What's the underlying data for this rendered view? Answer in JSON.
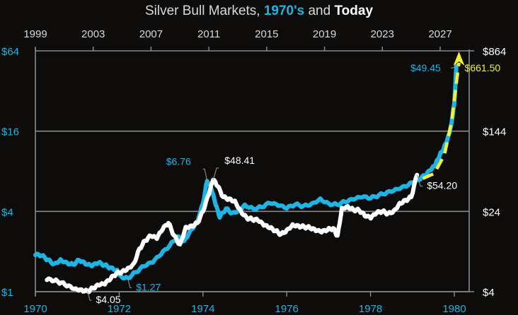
{
  "chart_data": {
    "type": "line",
    "title": {
      "prefix": "Silver Bull Markets, ",
      "highlight_1970s": "1970's",
      "middle": " and ",
      "highlight_today": "Today"
    },
    "colors": {
      "series_1970s": "#1fb4e3",
      "series_today": "#ffffff",
      "projection": "#f2ef3a",
      "axis": "#8a8a8a",
      "background": "#0d0c0b"
    },
    "x_bottom": {
      "label": "",
      "ticks": [
        "1970",
        "1972",
        "1974",
        "1976",
        "1978",
        "1980"
      ],
      "range": [
        1970,
        1980.4
      ]
    },
    "x_top": {
      "label": "",
      "ticks": [
        "1999",
        "2003",
        "2007",
        "2011",
        "2015",
        "2019",
        "2023",
        "2027"
      ],
      "range": [
        1999,
        2029.3
      ]
    },
    "y_left": {
      "scale": "log",
      "ticks": [
        "$1",
        "$4",
        "$16",
        "$64"
      ],
      "values": [
        1,
        4,
        16,
        64
      ],
      "range": [
        1,
        64
      ]
    },
    "y_right": {
      "scale": "log",
      "ticks": [
        "$4",
        "$24",
        "$144",
        "$864"
      ],
      "values": [
        4,
        24,
        144,
        864
      ],
      "range": [
        4,
        864
      ]
    },
    "grid": true,
    "series": [
      {
        "name": "1970's",
        "axis": "bottom-left",
        "x": [
          1970.0,
          1970.15,
          1970.3,
          1970.45,
          1970.6,
          1970.75,
          1970.9,
          1971.05,
          1971.2,
          1971.35,
          1971.5,
          1971.65,
          1971.8,
          1971.95,
          1972.05,
          1972.2,
          1972.4,
          1972.6,
          1972.8,
          1973.0,
          1973.2,
          1973.4,
          1973.55,
          1973.7,
          1973.85,
          1974.0,
          1974.1,
          1974.2,
          1974.3,
          1974.4,
          1974.55,
          1974.7,
          1974.85,
          1975.0,
          1975.2,
          1975.4,
          1975.6,
          1975.8,
          1976.0,
          1976.2,
          1976.4,
          1976.6,
          1976.8,
          1977.0,
          1977.2,
          1977.4,
          1977.6,
          1977.8,
          1978.0,
          1978.2,
          1978.4,
          1978.6,
          1978.8,
          1979.0,
          1979.15,
          1979.3,
          1979.45,
          1979.55,
          1979.65,
          1979.75,
          1979.85,
          1979.92,
          1980.0,
          1980.05
        ],
        "y": [
          1.88,
          1.86,
          1.74,
          1.62,
          1.75,
          1.66,
          1.6,
          1.72,
          1.6,
          1.55,
          1.64,
          1.58,
          1.52,
          1.46,
          1.3,
          1.27,
          1.4,
          1.55,
          1.65,
          1.9,
          2.2,
          2.6,
          2.4,
          2.9,
          3.3,
          4.6,
          6.76,
          5.9,
          4.5,
          3.6,
          4.2,
          3.9,
          4.1,
          4.5,
          4.2,
          4.3,
          4.6,
          4.4,
          4.2,
          4.5,
          4.4,
          4.6,
          5.0,
          4.6,
          4.5,
          4.7,
          4.9,
          5.1,
          5.0,
          5.3,
          5.6,
          5.9,
          6.2,
          6.6,
          6.9,
          7.4,
          8.2,
          8.9,
          10.5,
          12.0,
          14.5,
          17.5,
          26.0,
          49.45
        ]
      },
      {
        "name": "Today",
        "axis": "top-right",
        "x": [
          1999.8,
          2000.3,
          2000.8,
          2001.3,
          2001.8,
          2002.2,
          2002.6,
          2003.0,
          2003.4,
          2003.8,
          2004.2,
          2004.6,
          2005.0,
          2005.4,
          2005.8,
          2006.2,
          2006.6,
          2007.0,
          2007.4,
          2007.8,
          2008.2,
          2008.6,
          2009.0,
          2009.4,
          2009.8,
          2010.2,
          2010.6,
          2011.0,
          2011.3,
          2011.6,
          2012.0,
          2012.4,
          2012.8,
          2013.2,
          2013.6,
          2014.0,
          2014.4,
          2014.8,
          2015.2,
          2015.6,
          2016.0,
          2016.4,
          2016.8,
          2017.2,
          2017.6,
          2018.0,
          2018.4,
          2018.8,
          2019.2,
          2019.6,
          2019.9,
          2020.2,
          2020.6,
          2021.0,
          2021.4,
          2021.8,
          2022.2,
          2022.6,
          2023.0,
          2023.4,
          2023.8,
          2024.2,
          2024.6,
          2025.0,
          2025.4
        ],
        "y": [
          5.2,
          5.1,
          4.9,
          4.6,
          4.3,
          4.2,
          4.05,
          4.3,
          4.6,
          4.7,
          5.3,
          6.0,
          6.3,
          6.8,
          7.5,
          10.5,
          12.5,
          13.8,
          13.0,
          16.0,
          18.5,
          14.0,
          11.5,
          17.0,
          17.5,
          18.5,
          24.0,
          35.0,
          48.41,
          42.0,
          33.0,
          32.0,
          30.5,
          24.5,
          21.0,
          20.0,
          19.5,
          17.5,
          16.5,
          15.5,
          14.5,
          16.0,
          18.0,
          17.5,
          17.0,
          16.5,
          15.5,
          15.0,
          15.8,
          16.5,
          14.0,
          26.0,
          27.0,
          25.0,
          24.5,
          21.5,
          20.5,
          23.0,
          24.0,
          23.0,
          24.5,
          29.0,
          31.0,
          33.0,
          54.2
        ]
      },
      {
        "name": "Projection",
        "axis": "top-right",
        "style": "dashed-arrow",
        "x": [
          2025.8,
          2026.6,
          2027.3,
          2027.8,
          2028.1,
          2028.3
        ],
        "y": [
          50,
          56,
          85,
          180,
          400,
          661.5
        ]
      }
    ],
    "annotations": [
      {
        "text": "$6.76",
        "series": "1970's",
        "x": 1974.1,
        "y": 6.76,
        "color": "#1fb4e3"
      },
      {
        "text": "$48.41",
        "series": "Today",
        "x": 2011.3,
        "y": 48.41,
        "color": "#ffffff"
      },
      {
        "text": "$1.27",
        "series": "1970's",
        "x": 1972.2,
        "y": 1.27,
        "color": "#1fb4e3"
      },
      {
        "text": "$4.05",
        "series": "Today",
        "x": 2002.6,
        "y": 4.05,
        "color": "#ffffff"
      },
      {
        "text": "$49.45",
        "series": "1970's",
        "x": 1980.05,
        "y": 49.45,
        "color": "#1fb4e3"
      },
      {
        "text": "$54.20",
        "series": "Today",
        "x": 2025.4,
        "y": 54.2,
        "color": "#ffffff"
      },
      {
        "text": "$661.50",
        "series": "Projection",
        "x": 2028.3,
        "y": 661.5,
        "color": "#f2ef3a"
      }
    ]
  }
}
